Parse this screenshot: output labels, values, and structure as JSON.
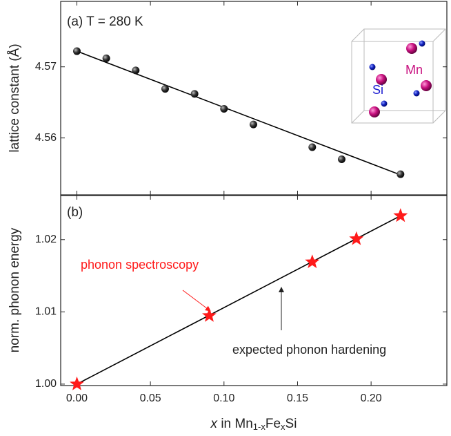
{
  "chart_data": [
    {
      "type": "scatter",
      "ylabel": "lattice constant (Å)",
      "annotation": "(a) T = 280 K",
      "inset_labels": [
        "Mn",
        "Si"
      ],
      "xlim": [
        -0.011,
        0.2515
      ],
      "ylim": [
        4.552,
        4.5792
      ],
      "yticks": [
        4.56,
        4.57
      ],
      "series": [
        {
          "color": "#111111",
          "marker": "sphere",
          "x": [
            0,
            0.02,
            0.04,
            0.06,
            0.08,
            0.1,
            0.12,
            0.16,
            0.18,
            0.22
          ],
          "values": [
            4.5722,
            4.5712,
            4.5695,
            4.5669,
            4.5662,
            4.5641,
            4.5619,
            4.5587,
            4.557,
            4.5549
          ]
        },
        {
          "color": "#000000",
          "marker": "line",
          "x": [
            0,
            0.22
          ],
          "values": [
            4.5722,
            4.5548
          ]
        }
      ]
    },
    {
      "type": "scatter",
      "ylabel": "norm. phonon energy",
      "annotation": "(b)",
      "xlabel": [
        "x",
        " in Mn",
        "1-x",
        "Fe",
        "x",
        "Si"
      ],
      "xlim": [
        -0.011,
        0.2515
      ],
      "ylim": [
        0.9998,
        1.0261
      ],
      "xticks": [
        {
          "value": 0,
          "label": "0.00"
        },
        {
          "value": 0.05,
          "label": "0.05"
        },
        {
          "value": 0.1,
          "label": "0.10"
        },
        {
          "value": 0.15,
          "label": "0.15"
        },
        {
          "value": 0.2,
          "label": "0.20"
        }
      ],
      "yticks": [
        {
          "value": 1,
          "label": "1.00"
        },
        {
          "value": 1.01,
          "label": "1.01"
        },
        {
          "value": 1.02,
          "label": "1.02"
        }
      ],
      "series": [
        {
          "color": "#000000",
          "marker": "line",
          "x": [
            0,
            0.22
          ],
          "values": [
            1.0,
            1.0233
          ]
        },
        {
          "color": "#ff1a1a",
          "marker": "star",
          "x": [
            0,
            0.09,
            0.16,
            0.19,
            0.22
          ],
          "values": [
            1.0,
            1.00947,
            1.0169,
            1.0201,
            1.0233
          ]
        }
      ],
      "annotations": [
        {
          "text": "phonon spectroscopy",
          "color": "#ff1a1a"
        },
        {
          "text": "expected phonon hardening",
          "color": "#222222"
        }
      ]
    }
  ]
}
